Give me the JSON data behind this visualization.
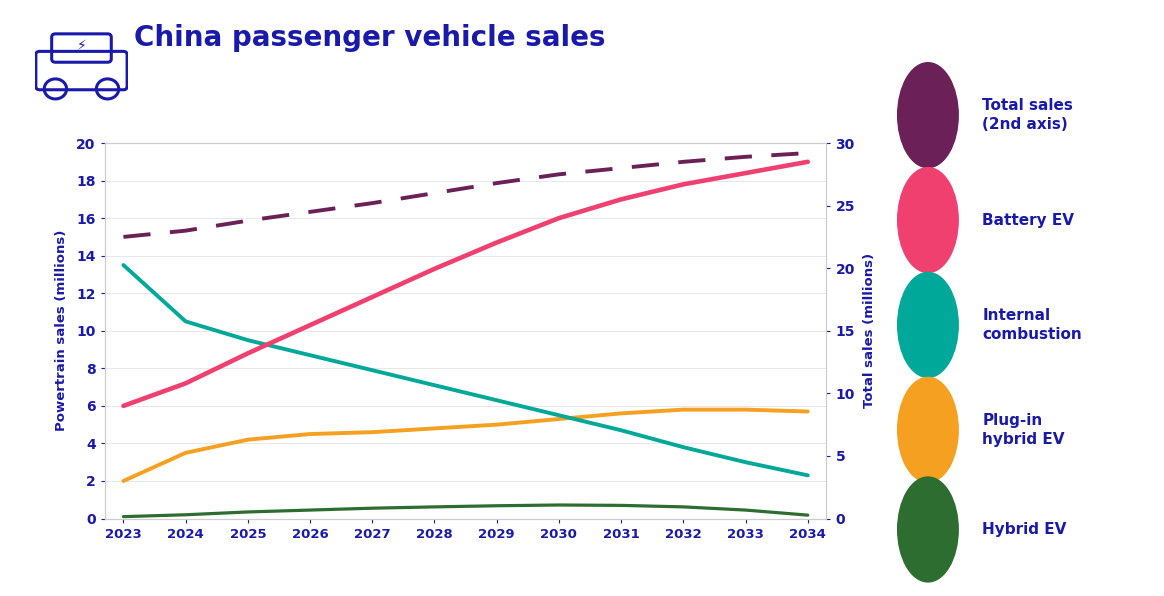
{
  "title": "China passenger vehicle sales",
  "ylabel_left": "Powertrain sales (millions)",
  "ylabel_right": "Total sales (millions)",
  "background_color": "#ffffff",
  "text_color": "#1a1aaa",
  "years": [
    2023,
    2024,
    2025,
    2026,
    2027,
    2028,
    2029,
    2030,
    2031,
    2032,
    2033,
    2034
  ],
  "total_sales": [
    22.5,
    23.0,
    23.8,
    24.5,
    25.2,
    26.0,
    26.8,
    27.5,
    28.0,
    28.5,
    28.9,
    29.2
  ],
  "battery_ev": [
    6.0,
    7.2,
    8.8,
    10.3,
    11.8,
    13.3,
    14.7,
    16.0,
    17.0,
    17.8,
    18.4,
    19.0
  ],
  "internal_combustion": [
    13.5,
    10.5,
    9.5,
    8.7,
    7.9,
    7.1,
    6.3,
    5.5,
    4.7,
    3.8,
    3.0,
    2.3
  ],
  "plugin_hybrid_ev": [
    2.0,
    3.5,
    4.2,
    4.5,
    4.6,
    4.8,
    5.0,
    5.3,
    5.6,
    5.8,
    5.8,
    5.7
  ],
  "hybrid_ev": [
    0.1,
    0.2,
    0.35,
    0.45,
    0.55,
    0.62,
    0.68,
    0.72,
    0.7,
    0.62,
    0.45,
    0.18
  ],
  "total_sales_color": "#6b2058",
  "battery_ev_color": "#f04070",
  "internal_combustion_color": "#00a89a",
  "plugin_hybrid_ev_color": "#f5a020",
  "hybrid_ev_color": "#2d6e30",
  "ylim_left": [
    0,
    20
  ],
  "ylim_right": [
    0,
    30
  ],
  "yticks_left": [
    0,
    2,
    4,
    6,
    8,
    10,
    12,
    14,
    16,
    18,
    20
  ],
  "yticks_right": [
    0,
    5,
    10,
    15,
    20,
    25,
    30
  ],
  "line_width": 2.8,
  "title_color": "#1a1aaa",
  "axis_color": "#1a1aaa",
  "grid_color": "#dddddd",
  "legend_labels": [
    "Total sales\n(2nd axis)",
    "Battery EV",
    "Internal\ncombustion",
    "Plug-in\nhybrid EV",
    "Hybrid EV"
  ],
  "legend_circle_colors": [
    "#6b2058",
    "#f04070",
    "#00a89a",
    "#f5a020",
    "#2d6e30"
  ]
}
